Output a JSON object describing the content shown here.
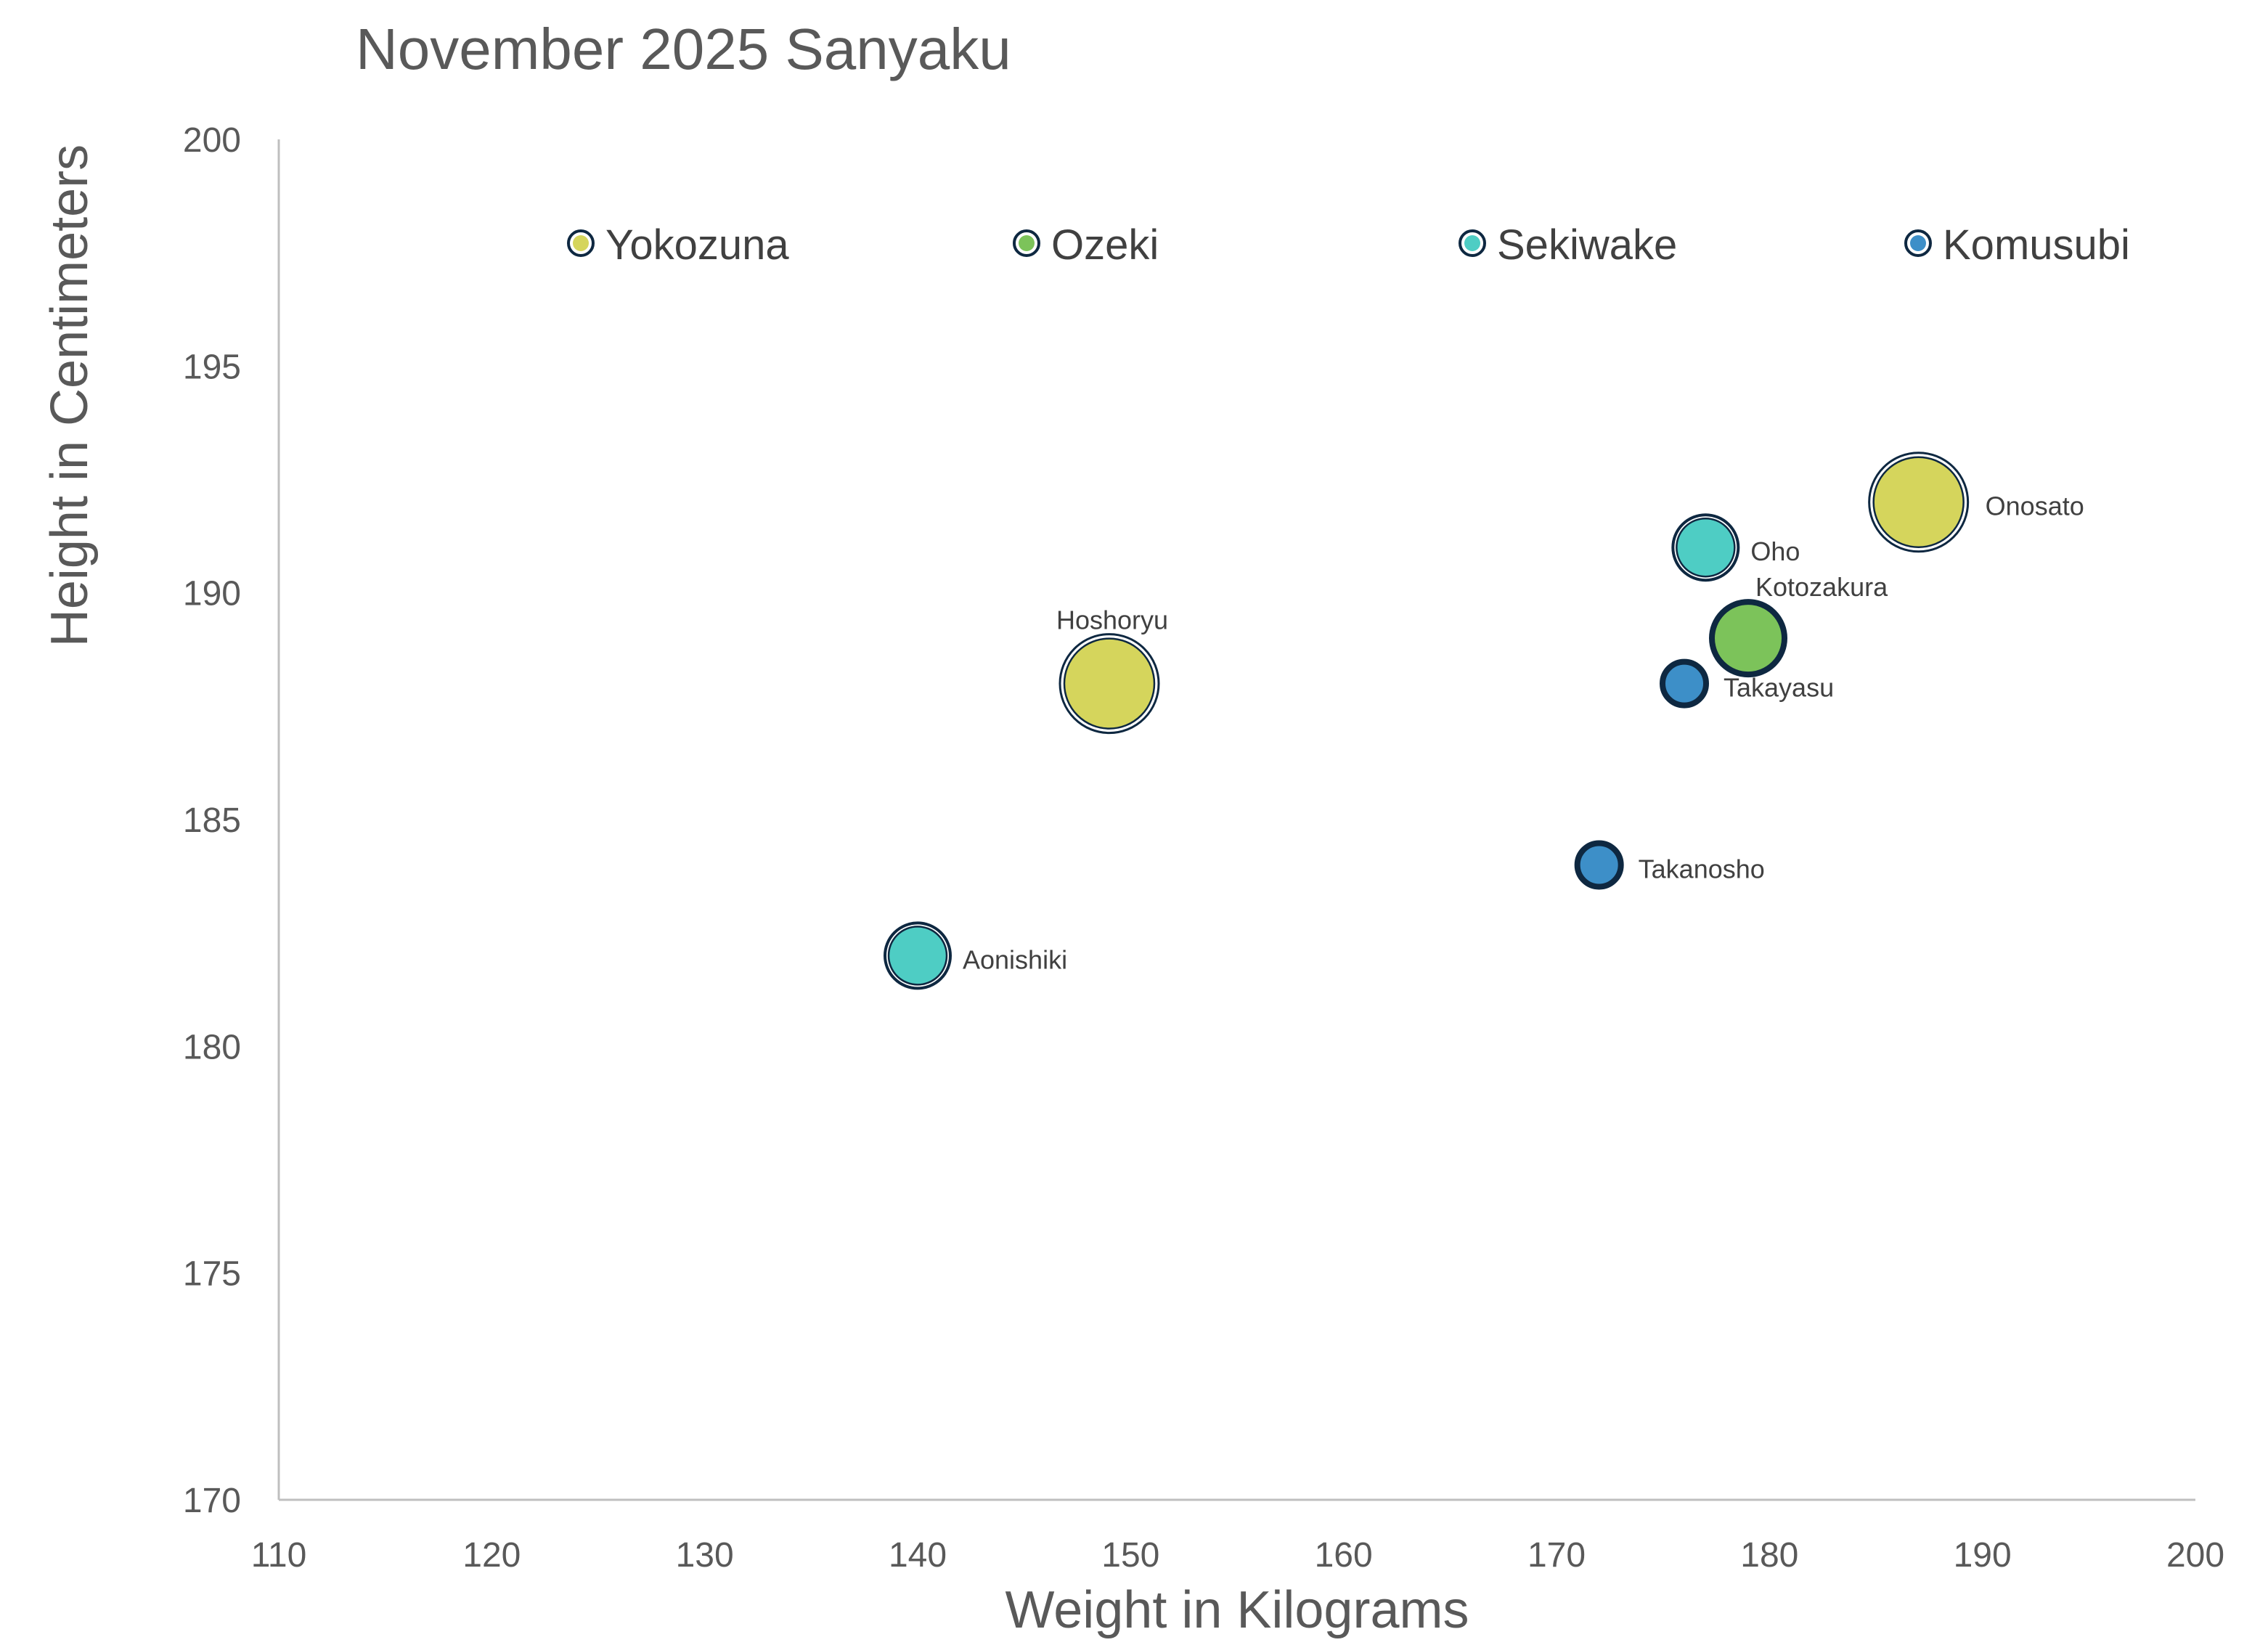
{
  "chart_data": {
    "type": "scatter",
    "title": "November 2025 Sanyaku",
    "xlabel": "Weight in Kilograms",
    "ylabel": "Height in Centimeters",
    "xlim": [
      110,
      200
    ],
    "ylim": [
      170,
      200
    ],
    "x_ticks": [
      110,
      120,
      130,
      140,
      150,
      160,
      170,
      180,
      190,
      200
    ],
    "y_ticks": [
      170,
      175,
      180,
      185,
      190,
      195,
      200
    ],
    "grid": false,
    "legend_position": "top",
    "series": [
      {
        "name": "Yokozuna",
        "color": "#D5D55C",
        "points": [
          {
            "label": "Onosato",
            "x": 187,
            "y": 192
          },
          {
            "label": "Hoshoryu",
            "x": 149,
            "y": 188
          }
        ]
      },
      {
        "name": "Ozeki",
        "color": "#7CC35A",
        "points": [
          {
            "label": "Kotozakura",
            "x": 179,
            "y": 189
          }
        ]
      },
      {
        "name": "Sekiwake",
        "color": "#4ECDC4",
        "points": [
          {
            "label": "Oho",
            "x": 177,
            "y": 191
          },
          {
            "label": "Aonishiki",
            "x": 140,
            "y": 182
          }
        ]
      },
      {
        "name": "Komusubi",
        "color": "#3D8FC8",
        "points": [
          {
            "label": "Takayasu",
            "x": 176,
            "y": 188
          },
          {
            "label": "Takanosho",
            "x": 172,
            "y": 184
          }
        ]
      }
    ]
  }
}
